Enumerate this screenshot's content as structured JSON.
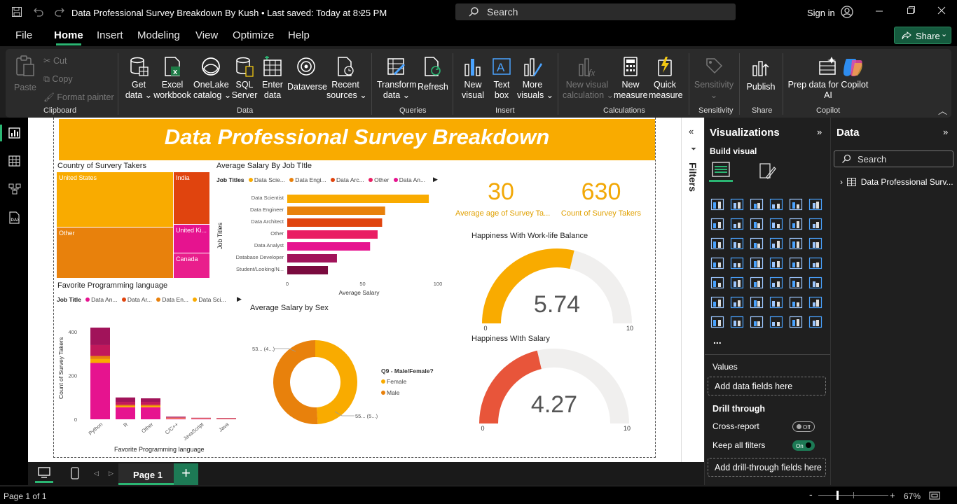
{
  "titlebar": {
    "title": "Data Professional Survey Breakdown By Kush • Last saved: Today at 8:25 PM",
    "search_placeholder": "Search",
    "signin": "Sign in"
  },
  "menu": {
    "items": [
      "File",
      "Home",
      "Insert",
      "Modeling",
      "View",
      "Optimize",
      "Help"
    ],
    "share": "Share"
  },
  "ribbon": {
    "clipboard": {
      "paste": "Paste",
      "cut": "Cut",
      "copy": "Copy",
      "format_painter": "Format painter",
      "group": "Clipboard"
    },
    "data": {
      "get_data": [
        "Get",
        "data ⌄"
      ],
      "excel": [
        "Excel",
        "workbook"
      ],
      "onelake": [
        "OneLake",
        "catalog ⌄"
      ],
      "sql": [
        "SQL",
        "Server"
      ],
      "enter": [
        "Enter",
        "data"
      ],
      "dataverse": "Dataverse",
      "recent": [
        "Recent",
        "sources ⌄"
      ],
      "group": "Data"
    },
    "queries": {
      "transform": [
        "Transform",
        "data ⌄"
      ],
      "refresh": "Refresh",
      "group": "Queries"
    },
    "insert": {
      "new_visual": [
        "New",
        "visual"
      ],
      "text_box": [
        "Text",
        "box"
      ],
      "more_visuals": [
        "More",
        "visuals ⌄"
      ],
      "group": "Insert"
    },
    "calculations": {
      "new_visual_calc": [
        "New visual",
        "calculation ⌄"
      ],
      "new_measure": [
        "New",
        "measure"
      ],
      "quick_measure": [
        "Quick",
        "measure"
      ],
      "group": "Calculations"
    },
    "sensitivity": {
      "label": [
        "Sensitivity",
        "⌄"
      ],
      "group": "Sensitivity"
    },
    "share": {
      "publish": "Publish",
      "group": "Share"
    },
    "copilot": {
      "prep": [
        "Prep data for Copilot",
        "AI"
      ],
      "group": "Copilot"
    }
  },
  "report": {
    "banner": "Data Professional Survey Breakdown",
    "treemap": {
      "title": "Country of Survery Takers",
      "cells": [
        "United States",
        "India",
        "Other",
        "United Ki...",
        "Canada"
      ]
    },
    "salary_job": {
      "title": "Average Salary By Job TItle",
      "legend_label": "Job Titles",
      "legend": [
        "Data Scie...",
        "Data Engi...",
        "Data Arc...",
        "Other",
        "Data An..."
      ],
      "ylabel": "Job Titles",
      "xlabel": "Average Salary"
    },
    "kpi1": {
      "value": "30",
      "label": "Average age of Survey Ta..."
    },
    "kpi2": {
      "value": "630",
      "label": "Count of Survey Takers"
    },
    "gauge1": {
      "title": "Happiness With Work-life Balance",
      "value": "5.74",
      "min": "0",
      "max": "10"
    },
    "gauge2": {
      "title": "Happiness WIth Salary",
      "value": "4.27",
      "min": "0",
      "max": "10"
    },
    "prog": {
      "title": "Favorite Programming language",
      "legend_label": "Job Title",
      "legend": [
        "Data An...",
        "Data Ar...",
        "Data En...",
        "Data Sci..."
      ],
      "ylabel": "Count of Survey Takers",
      "xlabel": "Favorite Programming language"
    },
    "sex": {
      "title": "Average Salary by Sex",
      "legend_title": "Q9 - Male/Female?",
      "legend": [
        "Female",
        "Male"
      ],
      "label_top": "53... (4...)",
      "label_bottom": "55... (5...)"
    },
    "filters": "Filters"
  },
  "chart_data": [
    {
      "type": "treemap",
      "title": "Country of Survery Takers",
      "categories": [
        "United States",
        "Other",
        "India",
        "United Ki...",
        "Canada"
      ],
      "values": [
        262,
        193,
        74,
        39,
        34
      ]
    },
    {
      "type": "bar",
      "orientation": "horizontal",
      "title": "Average Salary By Job TItle",
      "categories": [
        "Data Scientist",
        "Data Engineer",
        "Data Architect",
        "Other",
        "Data Analyst",
        "Database Developer",
        "Student/Looking/N..."
      ],
      "values": [
        94,
        65,
        63,
        60,
        55,
        33,
        27
      ],
      "xlim": [
        0,
        100
      ],
      "xticks": [
        "0",
        "50",
        "100"
      ],
      "xlabel": "Average Salary",
      "ylabel": "Job Titles",
      "colors": [
        "#f9ab00",
        "#e8810c",
        "#e0440e",
        "#e91e63",
        "#e6138f",
        "#a1135a",
        "#7a0a3e"
      ]
    },
    {
      "type": "bar",
      "stacked": true,
      "title": "Favorite Programming language",
      "categories": [
        "Python",
        "R",
        "Other",
        "C/C++",
        "JavaScript",
        "Java"
      ],
      "series": [
        {
          "name": "Data Sci...",
          "values": [
            258,
            55,
            55,
            4,
            3,
            2
          ],
          "color": "#e6138f"
        },
        {
          "name": "Data En...",
          "values": [
            18,
            6,
            6,
            2,
            1,
            1
          ],
          "color": "#f9ab00"
        },
        {
          "name": "Data Ar...",
          "values": [
            14,
            5,
            5,
            1,
            1,
            1
          ],
          "color": "#e8810c"
        },
        {
          "name": "Data An...",
          "values": [
            50,
            14,
            14,
            2,
            1,
            1
          ],
          "color": "#c2185b"
        },
        {
          "name": "Other",
          "values": [
            80,
            20,
            16,
            3,
            1,
            1
          ],
          "color": "#a1135a"
        }
      ],
      "ylim": [
        0,
        420
      ],
      "yticks": [
        "0",
        "200",
        "400"
      ],
      "xlabel": "Favorite Programming language",
      "ylabel": "Count of Survey Takers"
    },
    {
      "type": "pie",
      "donut": true,
      "title": "Average Salary by Sex",
      "categories": [
        "Female",
        "Male"
      ],
      "values": [
        53,
        55
      ],
      "colors": [
        "#f9ab00",
        "#e8810c"
      ]
    },
    {
      "type": "gauge",
      "title": "Happiness With Work-life Balance",
      "value": 5.74,
      "min": 0,
      "max": 10,
      "color": "#f9ab00"
    },
    {
      "type": "gauge",
      "title": "Happiness WIth Salary",
      "value": 4.27,
      "min": 0,
      "max": 10,
      "color": "#e8553a"
    }
  ],
  "visualizations": {
    "title": "Visualizations",
    "build_visual": "Build visual",
    "more": "...",
    "values": "Values",
    "add_data_fields": "Add data fields here",
    "drill_through": "Drill through",
    "cross_report": "Cross-report",
    "cross_report_state": "Off",
    "keep_all_filters": "Keep all filters",
    "keep_all_filters_state": "On",
    "add_drill_through": "Add drill-through fields here"
  },
  "data_pane": {
    "title": "Data",
    "search_placeholder": "Search",
    "table": "Data Professional Surv..."
  },
  "pages": {
    "tab": "Page 1",
    "add": "+"
  },
  "status": {
    "page": "Page 1 of 1",
    "zoom": "67%",
    "minus": "-",
    "plus": "+"
  }
}
